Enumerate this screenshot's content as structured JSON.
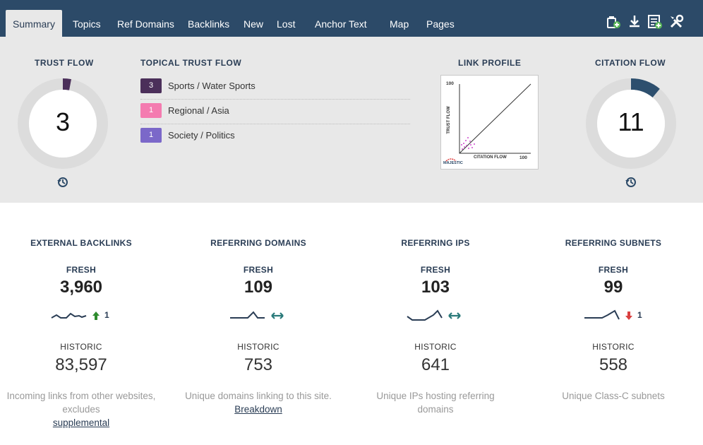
{
  "nav": {
    "tabs": [
      {
        "label": "Summary",
        "active": true
      },
      {
        "label": "Topics"
      },
      {
        "label": "Ref Domains"
      },
      {
        "label": "Backlinks"
      },
      {
        "label": "New"
      },
      {
        "label": "Lost"
      },
      {
        "label": "Anchor Text"
      },
      {
        "label": "Map"
      },
      {
        "label": "Pages"
      }
    ],
    "tools": [
      "add-to-bucket-icon",
      "download-icon",
      "add-report-icon",
      "tools-icon"
    ]
  },
  "colors": {
    "navbar": "#2c4a68",
    "panel": "#e8e8e8",
    "trust_flow_arc": "#4b2f5a",
    "citation_flow_arc": "#2d4f6e",
    "up_arrow": "#2e8b2e",
    "down_arrow": "#d94040",
    "flat_arrow": "#2a7a7a"
  },
  "trust_flow": {
    "title": "TRUST FLOW",
    "value": "3",
    "fraction": 0.03
  },
  "topical_trust_flow": {
    "title": "TOPICAL TRUST FLOW",
    "items": [
      {
        "score": "3",
        "label": "Sports / Water Sports",
        "color": "#4b2f5a"
      },
      {
        "score": "1",
        "label": "Regional / Asia",
        "color": "#f47bb0"
      },
      {
        "score": "1",
        "label": "Society / Politics",
        "color": "#7b68c9"
      }
    ]
  },
  "link_profile": {
    "title": "LINK PROFILE",
    "y_axis_label": "TRUST FLOW",
    "x_axis_label": "CITATION FLOW",
    "y_max": "100",
    "x_max": "100",
    "logo": "MAJESTIC"
  },
  "citation_flow": {
    "title": "CITATION FLOW",
    "value": "11",
    "fraction": 0.11
  },
  "metrics": [
    {
      "title": "EXTERNAL BACKLINKS",
      "fresh_label": "FRESH",
      "fresh_value": "3,960",
      "trend": "up",
      "trend_value": "1",
      "historic_label": "HISTORIC",
      "historic_value": "83,597",
      "desc": "Incoming links from other websites, excludes",
      "link": "supplemental"
    },
    {
      "title": "REFERRING DOMAINS",
      "fresh_label": "FRESH",
      "fresh_value": "109",
      "trend": "flat",
      "trend_value": "",
      "historic_label": "HISTORIC",
      "historic_value": "753",
      "desc": "Unique domains linking to this site.",
      "link": "Breakdown"
    },
    {
      "title": "REFERRING IPS",
      "fresh_label": "FRESH",
      "fresh_value": "103",
      "trend": "flat",
      "trend_value": "",
      "historic_label": "HISTORIC",
      "historic_value": "641",
      "desc": "Unique IPs hosting referring domains",
      "link": ""
    },
    {
      "title": "REFERRING SUBNETS",
      "fresh_label": "FRESH",
      "fresh_value": "99",
      "trend": "down",
      "trend_value": "1",
      "historic_label": "HISTORIC",
      "historic_value": "558",
      "desc": "Unique Class-C subnets",
      "link": ""
    }
  ]
}
